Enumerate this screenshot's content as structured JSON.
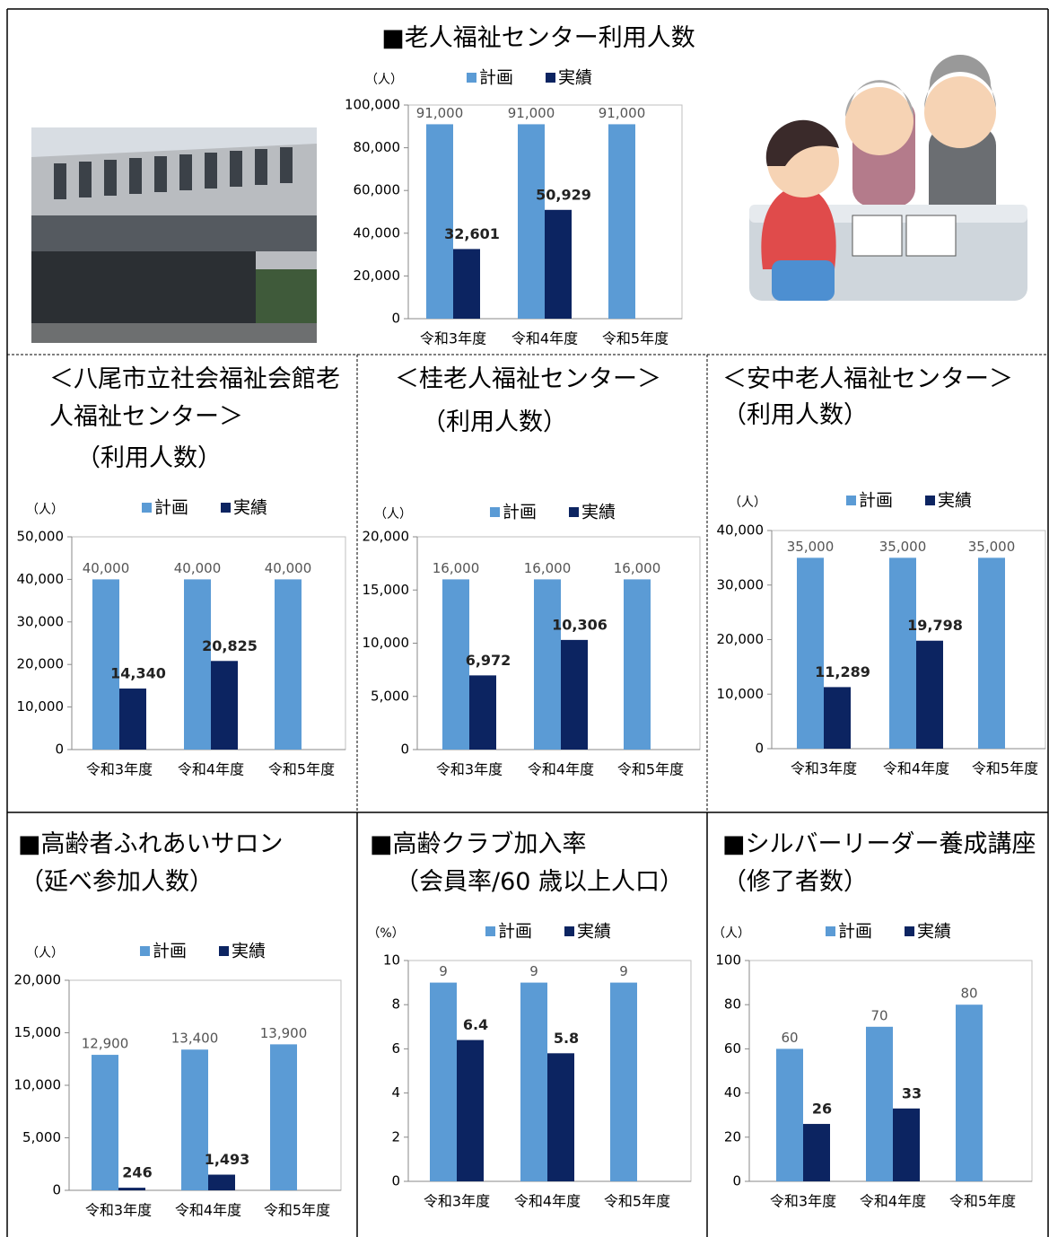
{
  "chart_data": [
    {
      "type": "bar",
      "title": "■老人福祉センター利用人数",
      "ylabel": "（人）",
      "categories": [
        "令和3年度",
        "令和4年度",
        "令和5年度"
      ],
      "series": [
        {
          "name": "計画",
          "color": "#5b9bd5",
          "values": [
            91000,
            91000,
            91000
          ],
          "value_labels": [
            "91,000",
            "91,000",
            "91,000"
          ]
        },
        {
          "name": "実績",
          "color": "#0c2461",
          "values": [
            32601,
            50929,
            null
          ],
          "value_labels": [
            "32,601",
            "50,929",
            null
          ]
        }
      ],
      "ylim": [
        0,
        100000
      ],
      "yticks": [
        0,
        {
          "value": 20000,
          "label": "20,000"
        },
        {
          "value": 40000,
          "label": "40,000"
        },
        {
          "value": 60000,
          "label": "60,000"
        },
        {
          "value": 80000,
          "label": "80,000"
        },
        {
          "value": 100000,
          "label": "100,000"
        }
      ]
    },
    {
      "type": "bar",
      "title": "＜八尾市立社会福祉会館老人福祉センター＞",
      "subtitle": "（利用人数）",
      "ylabel": "（人）",
      "categories": [
        "令和3年度",
        "令和4年度",
        "令和5年度"
      ],
      "series": [
        {
          "name": "計画",
          "color": "#5b9bd5",
          "values": [
            40000,
            40000,
            40000
          ],
          "value_labels": [
            "40,000",
            "40,000",
            "40,000"
          ]
        },
        {
          "name": "実績",
          "color": "#0c2461",
          "values": [
            14340,
            20825,
            null
          ],
          "value_labels": [
            "14,340",
            "20,825",
            null
          ]
        }
      ],
      "ylim": [
        0,
        50000
      ],
      "yticks": [
        0,
        {
          "value": 10000,
          "label": "10,000"
        },
        {
          "value": 20000,
          "label": "20,000"
        },
        {
          "value": 30000,
          "label": "30,000"
        },
        {
          "value": 40000,
          "label": "40,000"
        },
        {
          "value": 50000,
          "label": "50,000"
        }
      ]
    },
    {
      "type": "bar",
      "title": "＜桂老人福祉センター＞",
      "subtitle": "（利用人数）",
      "ylabel": "（人）",
      "categories": [
        "令和3年度",
        "令和4年度",
        "令和5年度"
      ],
      "series": [
        {
          "name": "計画",
          "color": "#5b9bd5",
          "values": [
            16000,
            16000,
            16000
          ],
          "value_labels": [
            "16,000",
            "16,000",
            "16,000"
          ]
        },
        {
          "name": "実績",
          "color": "#0c2461",
          "values": [
            6972,
            10306,
            null
          ],
          "value_labels": [
            "6,972",
            "10,306",
            null
          ]
        }
      ],
      "ylim": [
        0,
        20000
      ],
      "yticks": [
        0,
        {
          "value": 5000,
          "label": "5,000"
        },
        {
          "value": 10000,
          "label": "10,000"
        },
        {
          "value": 15000,
          "label": "15,000"
        },
        {
          "value": 20000,
          "label": "20,000"
        }
      ]
    },
    {
      "type": "bar",
      "title": "＜安中老人福祉センター＞",
      "subtitle": "（利用人数）",
      "ylabel": "（人）",
      "categories": [
        "令和3年度",
        "令和4年度",
        "令和5年度"
      ],
      "series": [
        {
          "name": "計画",
          "color": "#5b9bd5",
          "values": [
            35000,
            35000,
            35000
          ],
          "value_labels": [
            "35,000",
            "35,000",
            "35,000"
          ]
        },
        {
          "name": "実績",
          "color": "#0c2461",
          "values": [
            11289,
            19798,
            null
          ],
          "value_labels": [
            "11,289",
            "19,798",
            null
          ]
        }
      ],
      "ylim": [
        0,
        40000
      ],
      "yticks": [
        0,
        {
          "value": 10000,
          "label": "10,000"
        },
        {
          "value": 20000,
          "label": "20,000"
        },
        {
          "value": 30000,
          "label": "30,000"
        },
        {
          "value": 40000,
          "label": "40,000"
        }
      ]
    },
    {
      "type": "bar",
      "title": "■高齢者ふれあいサロン",
      "subtitle": "（延べ参加人数）",
      "ylabel": "（人）",
      "categories": [
        "令和3年度",
        "令和4年度",
        "令和5年度"
      ],
      "series": [
        {
          "name": "計画",
          "color": "#5b9bd5",
          "values": [
            12900,
            13400,
            13900
          ],
          "value_labels": [
            "12,900",
            "13,400",
            "13,900"
          ]
        },
        {
          "name": "実績",
          "color": "#0c2461",
          "values": [
            246,
            1493,
            null
          ],
          "value_labels": [
            "246",
            "1,493",
            null
          ]
        }
      ],
      "ylim": [
        0,
        20000
      ],
      "yticks": [
        0,
        {
          "value": 5000,
          "label": "5,000"
        },
        {
          "value": 10000,
          "label": "10,000"
        },
        {
          "value": 15000,
          "label": "15,000"
        },
        {
          "value": 20000,
          "label": "20,000"
        }
      ]
    },
    {
      "type": "bar",
      "title": "■高齢クラブ加入率",
      "subtitle": "（会員率/60 歳以上人口）",
      "ylabel": "（%）",
      "categories": [
        "令和3年度",
        "令和4年度",
        "令和5年度"
      ],
      "series": [
        {
          "name": "計画",
          "color": "#5b9bd5",
          "values": [
            9,
            9,
            9
          ]
        },
        {
          "name": "実績",
          "color": "#0c2461",
          "values": [
            6.4,
            5.8,
            null
          ]
        }
      ],
      "ylim": [
        0,
        10
      ],
      "yticks": [
        0,
        2,
        4,
        6,
        8,
        10
      ]
    },
    {
      "type": "bar",
      "title": "■シルバーリーダー養成講座（修了者数）",
      "ylabel": "（人）",
      "categories": [
        "令和3年度",
        "令和4年度",
        "令和5年度"
      ],
      "series": [
        {
          "name": "計画",
          "color": "#5b9bd5",
          "values": [
            60,
            70,
            80
          ]
        },
        {
          "name": "実績",
          "color": "#0c2461",
          "values": [
            26,
            33,
            null
          ]
        }
      ],
      "ylim": [
        0,
        100
      ],
      "yticks": [
        0,
        20,
        40,
        60,
        80,
        100
      ]
    }
  ]
}
